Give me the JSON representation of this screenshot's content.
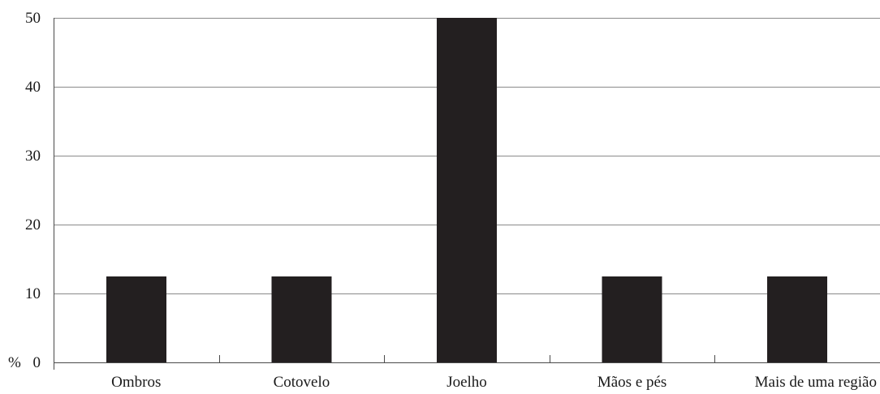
{
  "chart_data": {
    "type": "bar",
    "title": "",
    "xlabel": "",
    "ylabel": "%",
    "categories": [
      "Ombros",
      "Cotovelo",
      "Joelho",
      "Mãos e pés",
      "Mais de uma região"
    ],
    "values": [
      12.5,
      12.5,
      50,
      12.5,
      12.5
    ],
    "ylim": [
      0,
      50
    ],
    "yticks": [
      0,
      10,
      20,
      30,
      40,
      50
    ],
    "grid": true,
    "legend": "none",
    "bar_color": "#231f20"
  }
}
